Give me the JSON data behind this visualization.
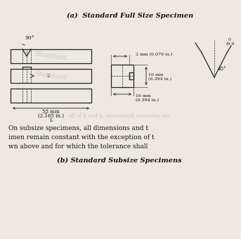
{
  "title_a": "(a)  Standard Full Size Specimen",
  "title_b": "(b) Standard Subsize Specimens",
  "body_text_1": "On subsize specimens, all dimensions and t",
  "body_text_2": "imen remain constant with the exception of t",
  "body_text_3": "wn above and for which the tolerance shall",
  "watermark_1": "Standard",
  "watermark_2": "Standard",
  "bg_color": "#ede9df",
  "line_color": "#222222",
  "text_color": "#111111",
  "watermark_color": "#c0bdb0",
  "angle_90": "90°",
  "width_55": "55 mm",
  "width_in": "(2.165 in.)",
  "label_L": "L",
  "notch_2mm": "2 mm (0.079 in.)",
  "height_10mm": "10 mm",
  "height_10mm_in": "(0.394 in.)",
  "width_10mm": "10 mm",
  "width_10mm_in": "(0.394 in.)",
  "angle_45": "45°",
  "corner_label": "0",
  "corner_label2": "(0.0"
}
